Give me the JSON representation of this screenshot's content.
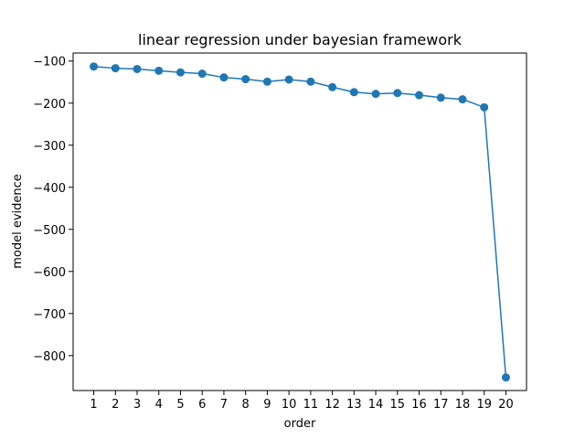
{
  "chart_data": {
    "type": "line",
    "title": "linear regression under bayesian framework",
    "xlabel": "order",
    "ylabel": "model evidence",
    "x": [
      1,
      2,
      3,
      4,
      5,
      6,
      7,
      8,
      9,
      10,
      11,
      12,
      13,
      14,
      15,
      16,
      17,
      18,
      19,
      20
    ],
    "series": [
      {
        "values": [
          -113,
          -117,
          -119,
          -123,
          -127,
          -130,
          -139,
          -143,
          -149,
          -144,
          -149,
          -162,
          -174,
          -178,
          -176,
          -181,
          -187,
          -191,
          -210,
          -852
        ],
        "color": "#1f77b4"
      }
    ],
    "xlim": [
      0.05,
      20.95
    ],
    "ylim": [
      -883,
      -81
    ],
    "x_ticks": [
      1,
      2,
      3,
      4,
      5,
      6,
      7,
      8,
      9,
      10,
      11,
      12,
      13,
      14,
      15,
      16,
      17,
      18,
      19,
      20
    ],
    "y_ticks": [
      -100,
      -200,
      -300,
      -400,
      -500,
      -600,
      -700,
      -800
    ],
    "y_tick_labels": [
      "−100",
      "−200",
      "−300",
      "−400",
      "−500",
      "−600",
      "−700",
      "−800"
    ],
    "grid": false,
    "legend": "none",
    "markers": "circle"
  }
}
